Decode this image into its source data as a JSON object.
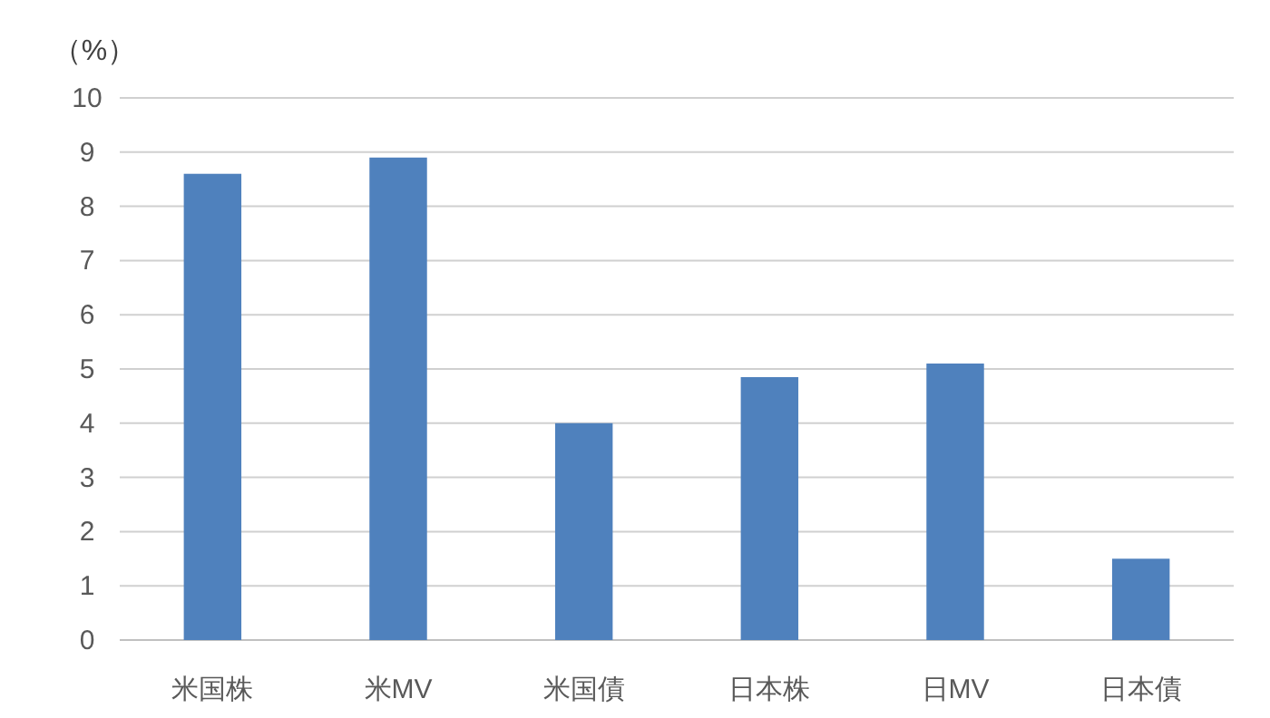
{
  "chart_data": {
    "type": "bar",
    "ylabel": "（%）",
    "categories": [
      "米国株",
      "米MV",
      "米国債",
      "日本株",
      "日MV",
      "日本債"
    ],
    "values": [
      8.6,
      8.9,
      4.0,
      4.85,
      5.1,
      1.5
    ],
    "color": "#4f81bd",
    "ylim": [
      0,
      10
    ],
    "yticks": [
      0,
      1,
      2,
      3,
      4,
      5,
      6,
      7,
      8,
      9,
      10
    ],
    "grid": "y"
  }
}
